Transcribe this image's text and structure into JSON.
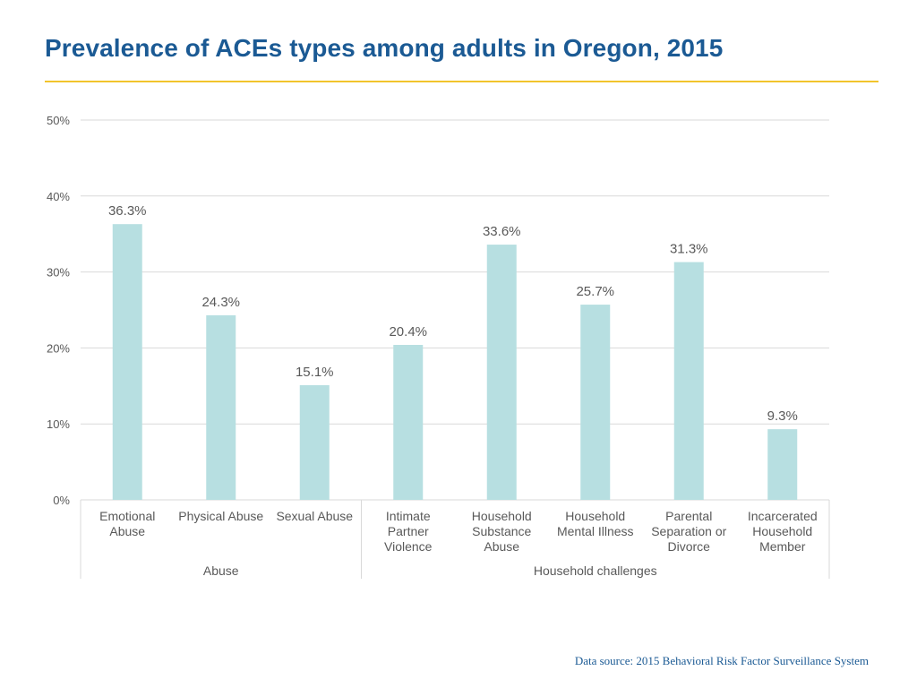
{
  "title": "Prevalence of ACEs types among adults in Oregon, 2015",
  "source": "Data source: 2015 Behavioral Risk Factor Surveillance System",
  "colors": {
    "title": "#1b5a94",
    "rule": "#f2c42c",
    "bar": "#b7dfe1",
    "grid": "#d9d9d9",
    "axis_text": "#595959",
    "source": "#1b5a94"
  },
  "chart_data": {
    "type": "bar",
    "title": "Prevalence of ACEs types among adults in Oregon, 2015",
    "xlabel": "",
    "ylabel": "",
    "ylim": [
      0,
      50
    ],
    "yticks": [
      "0%",
      "10%",
      "20%",
      "30%",
      "40%",
      "50%"
    ],
    "grid": true,
    "legend": "none",
    "categories": [
      [
        "Emotional",
        "Abuse"
      ],
      [
        "Physical Abuse"
      ],
      [
        "Sexual Abuse"
      ],
      [
        "Intimate",
        "Partner",
        "Violence"
      ],
      [
        "Household",
        "Substance",
        "Abuse"
      ],
      [
        "Household",
        "Mental Illness"
      ],
      [
        "Parental",
        "Separation or",
        "Divorce"
      ],
      [
        "Incarcerated",
        "Household",
        "Member"
      ]
    ],
    "values": [
      36.3,
      24.3,
      15.1,
      20.4,
      33.6,
      25.7,
      31.3,
      9.3
    ],
    "data_labels": [
      "36.3%",
      "24.3%",
      "15.1%",
      "20.4%",
      "33.6%",
      "25.7%",
      "31.3%",
      "9.3%"
    ],
    "groups": [
      {
        "label": "Abuse",
        "count": 3
      },
      {
        "label": "Household challenges",
        "count": 5
      }
    ]
  }
}
